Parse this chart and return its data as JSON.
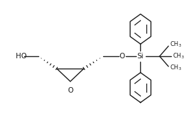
{
  "bg_color": "#ffffff",
  "line_color": "#1a1a1a",
  "line_width": 1.0,
  "fig_width": 2.75,
  "fig_height": 1.75,
  "dpi": 100,
  "xlim": [
    0,
    275
  ],
  "ylim": [
    0,
    175
  ]
}
